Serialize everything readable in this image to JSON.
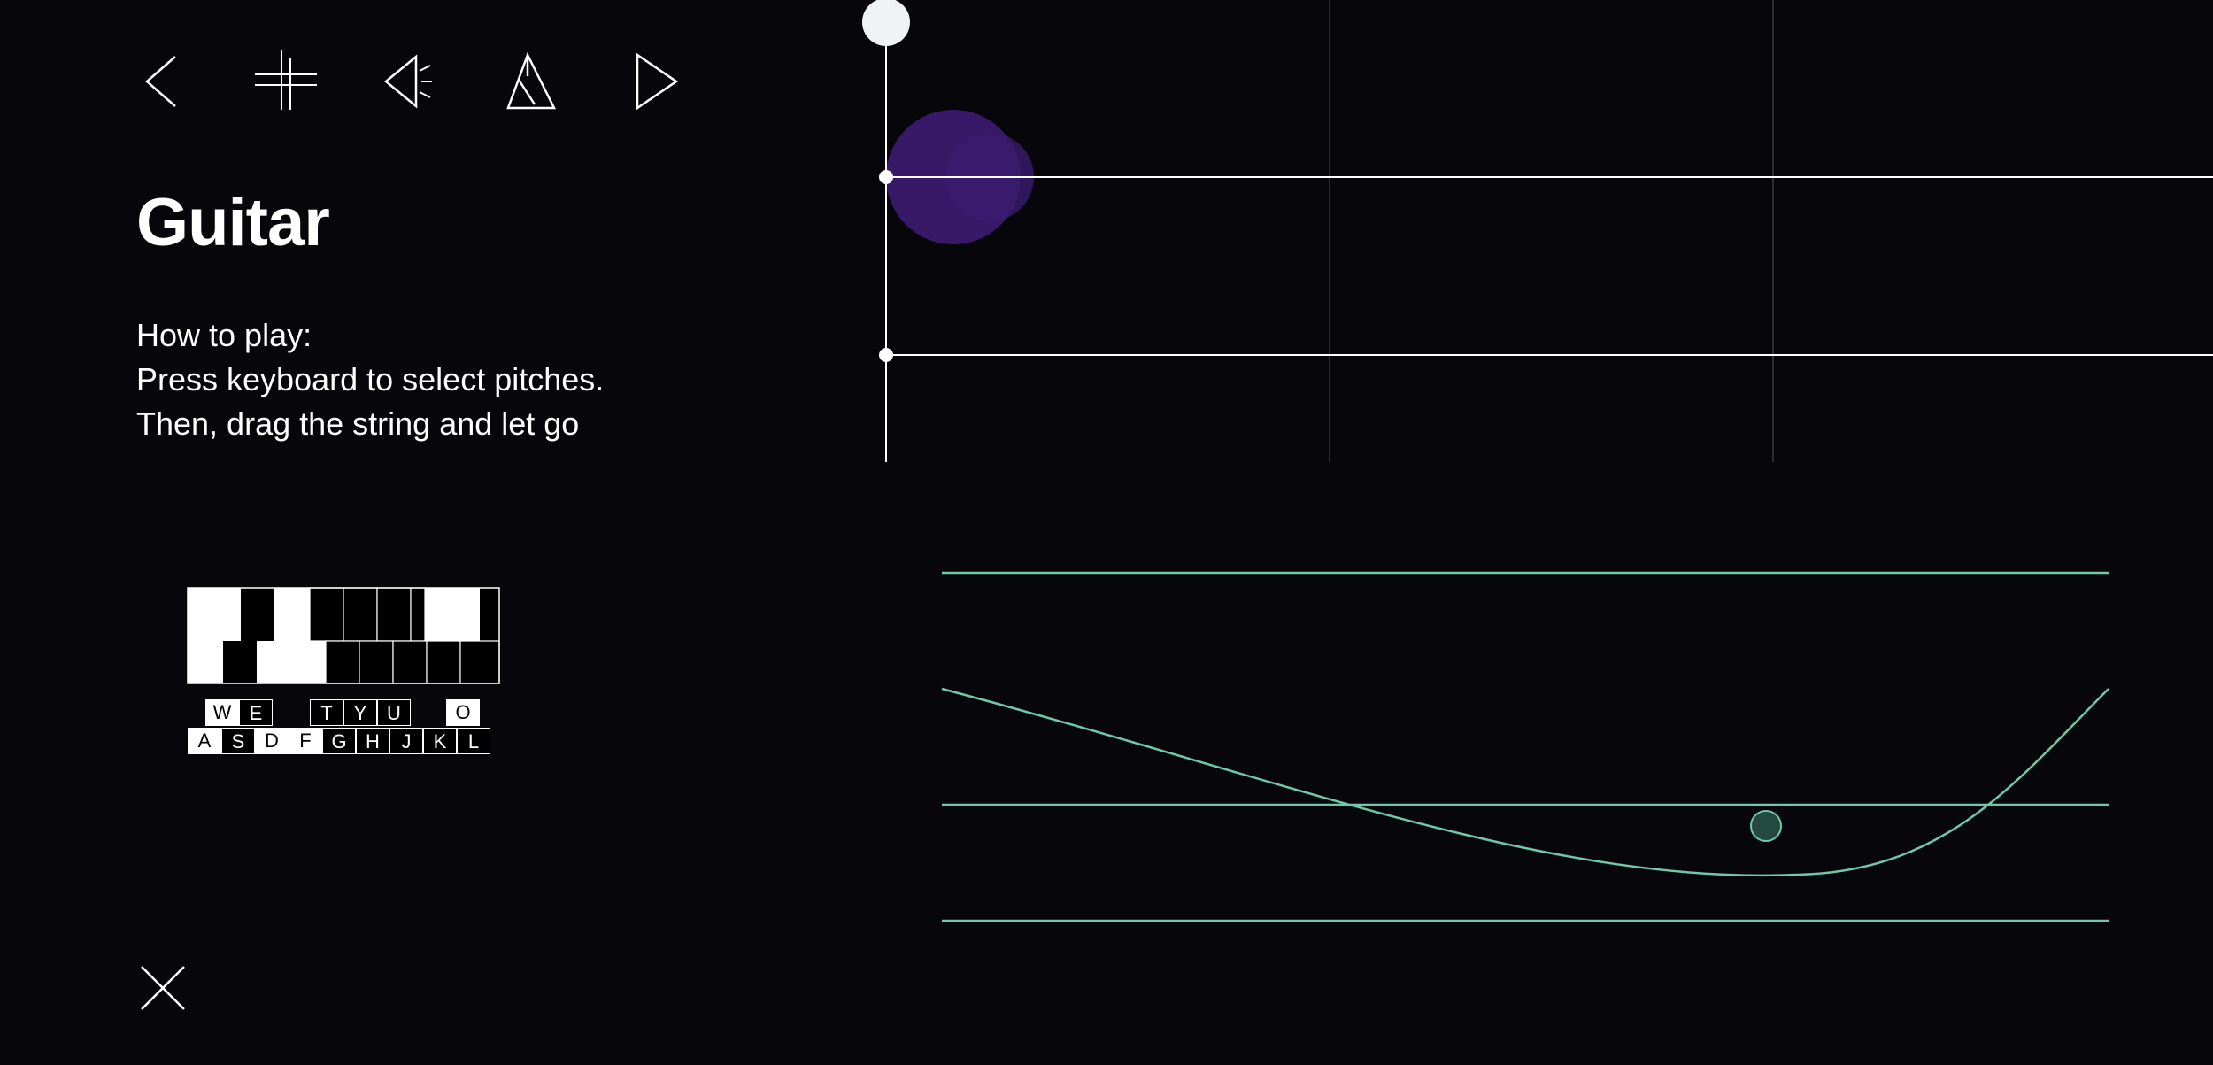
{
  "toolbar": {
    "items": [
      {
        "name": "back-button",
        "icon": "chevron-left-icon"
      },
      {
        "name": "fretboard-button",
        "icon": "hashtag-icon"
      },
      {
        "name": "sound-button",
        "icon": "speaker-icon"
      },
      {
        "name": "metronome-button",
        "icon": "metronome-icon"
      },
      {
        "name": "next-button",
        "icon": "play-icon"
      }
    ]
  },
  "title": "Guitar",
  "instructions": {
    "heading": "How to play:",
    "line1": "Press keyboard to select pitches.",
    "line2": "Then, drag the string and let go"
  },
  "keyboard": {
    "top_row": [
      "W",
      "E",
      "T",
      "Y",
      "U",
      "O"
    ],
    "bottom_row": [
      "A",
      "S",
      "D",
      "F",
      "G",
      "H",
      "J",
      "K",
      "L"
    ]
  },
  "close": {
    "icon": "close-icon"
  },
  "colors": {
    "background": "#07070b",
    "string": "#ffffff",
    "pluck": "#3b1a6e",
    "wave": "#6fc9a9"
  }
}
